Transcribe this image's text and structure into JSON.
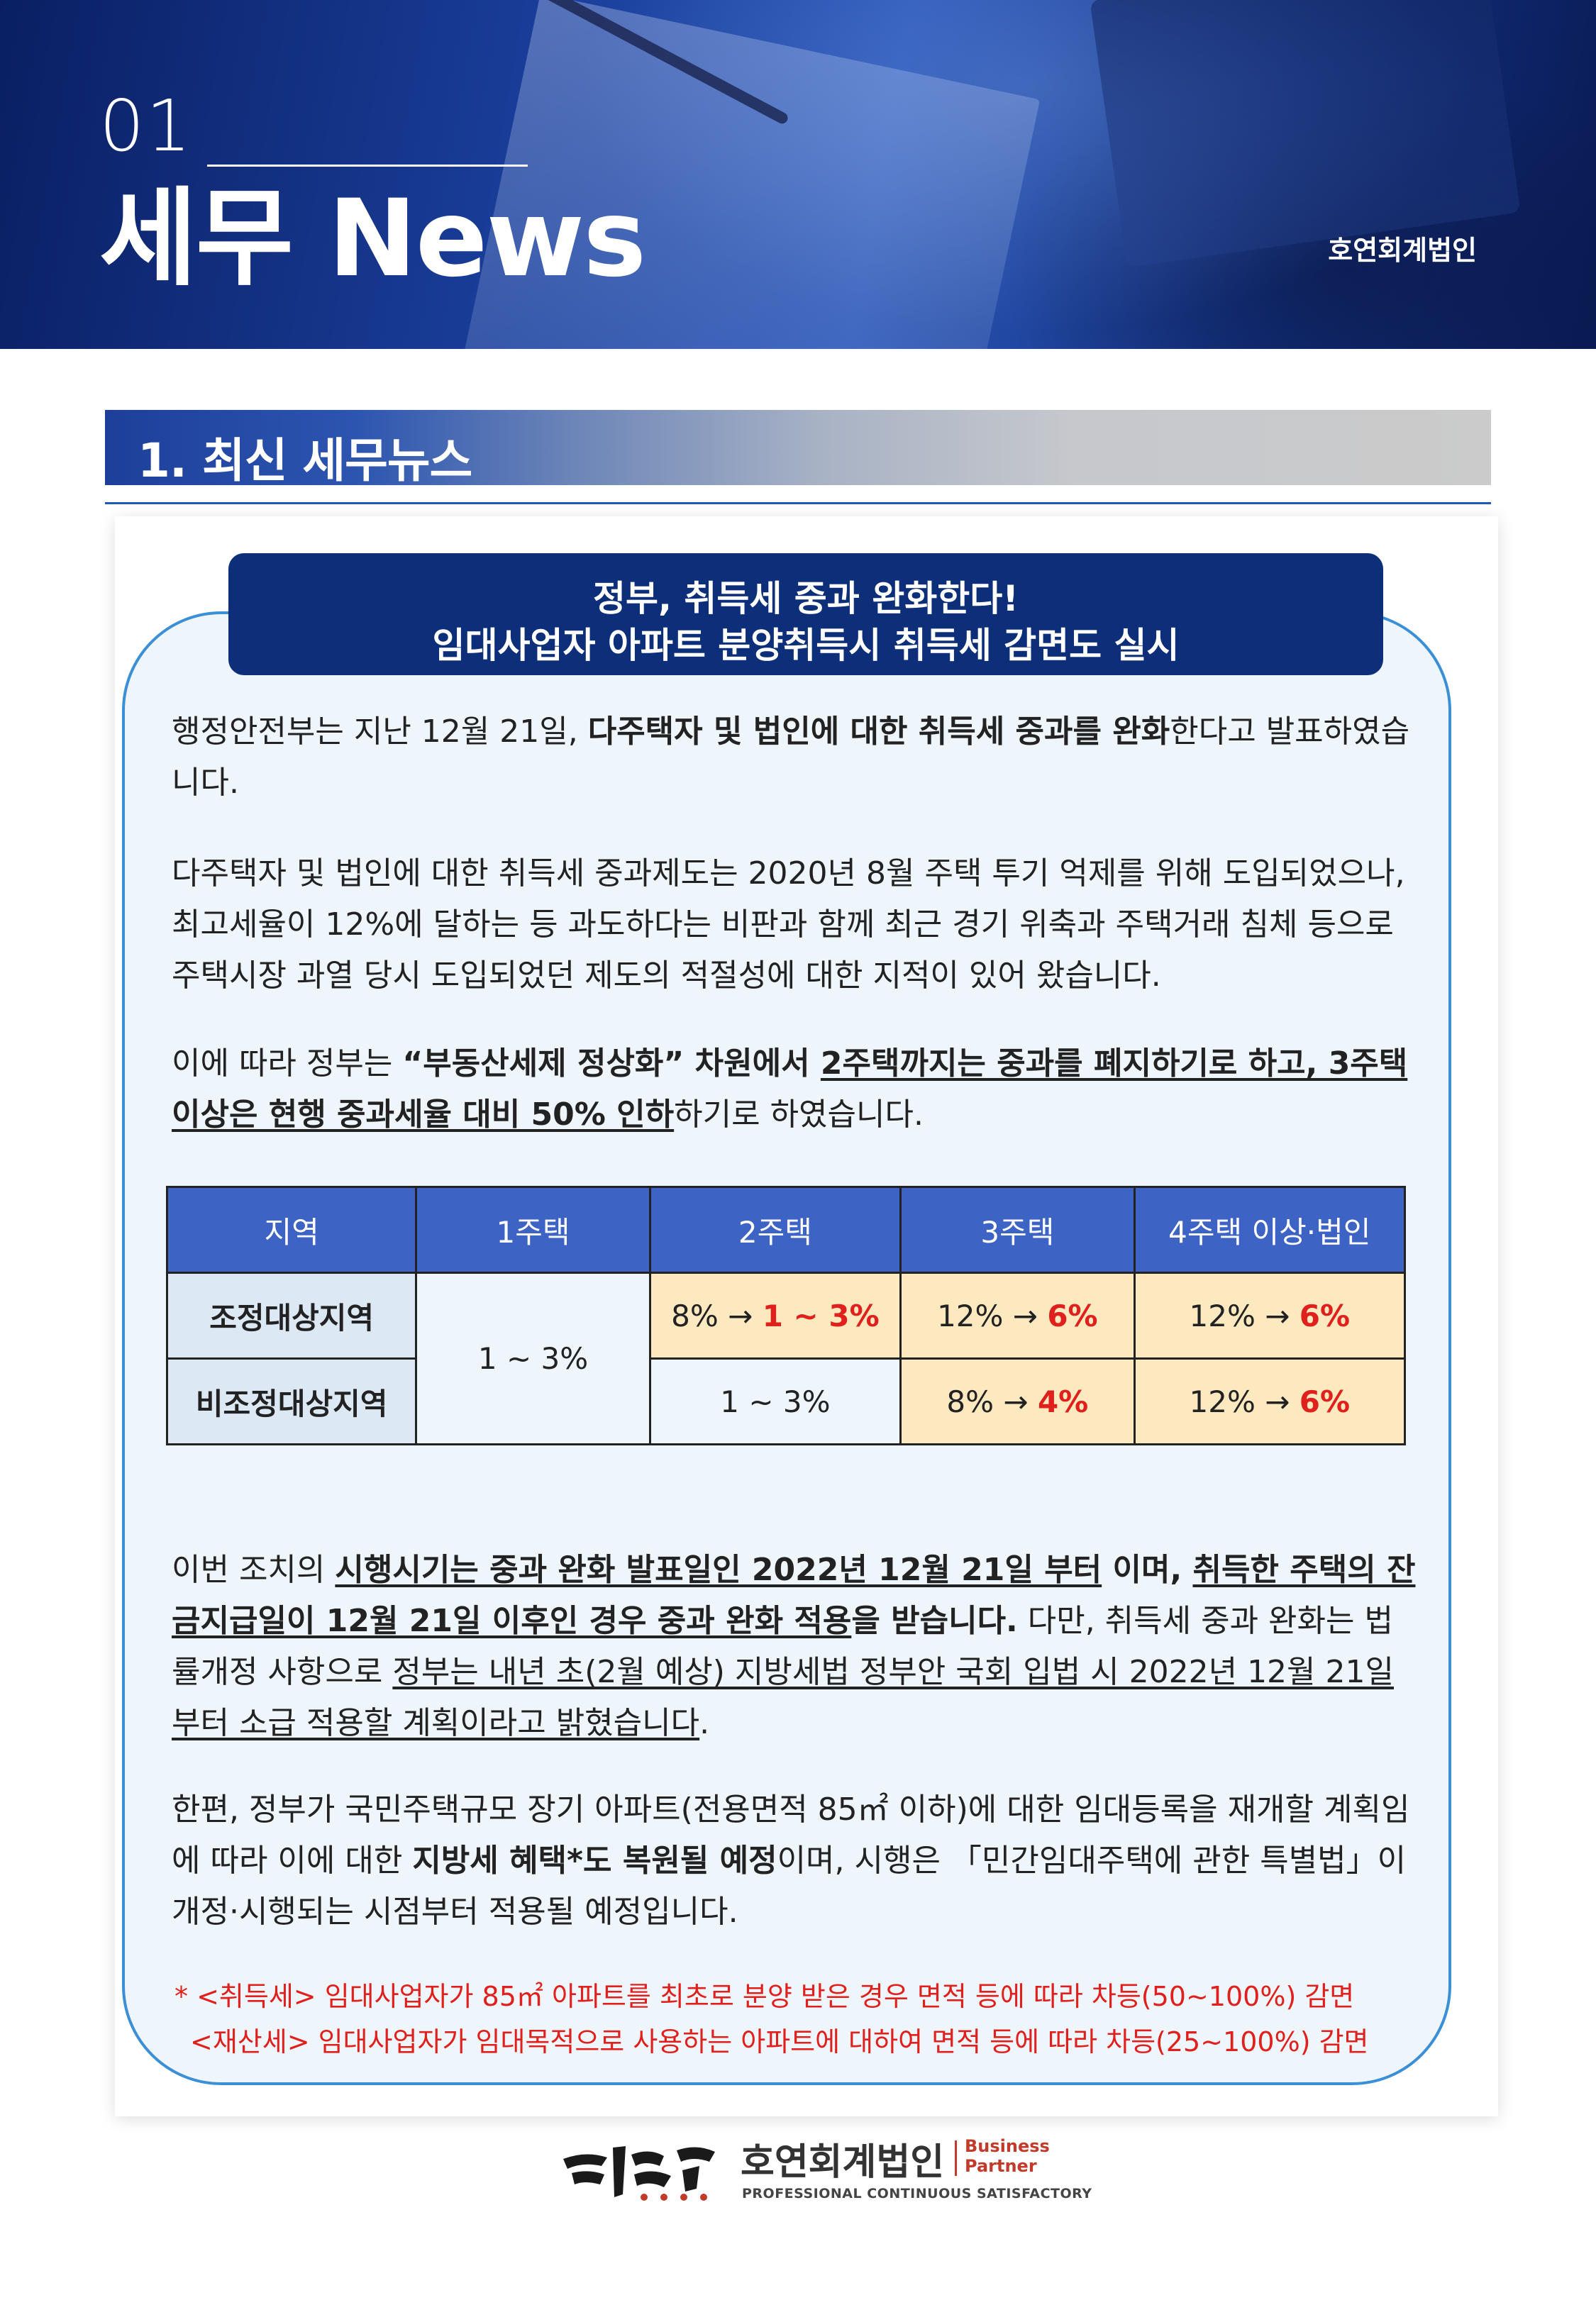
{
  "header": {
    "section_number": "01",
    "title": "세무 News",
    "firm": "호연회계법인"
  },
  "section": {
    "title": "1. 최신 세무뉴스"
  },
  "headline": {
    "line1": "정부, 취득세 중과 완화한다!",
    "line2": "임대사업자 아파트 분양취득시 취득세 감면도 실시"
  },
  "paragraphs": {
    "p1_a": "행정안전부는 지난 12월 21일, ",
    "p1_b": "다주택자 및 법인에 대한 취득세 중과를 완화",
    "p1_c": "한다고 발표하였습니다.",
    "p2": "다주택자 및 법인에 대한 취득세 중과제도는 2020년 8월 주택 투기 억제를 위해 도입되었으나, 최고세율이 12%에 달하는 등 과도하다는 비판과 함께 최근 경기 위축과 주택거래 침체 등으로 주택시장 과열 당시 도입되었던 제도의 적절성에 대한 지적이 있어 왔습니다.",
    "p3_a": "이에 따라 정부는 ",
    "p3_b": "“부동산세제 정상화” 차원에서 ",
    "p3_c": "2주택까지는 중과를 폐지하기로 하고, 3주택 이상은 현행 중과세율 대비 50% 인하",
    "p3_d": "하기로 하였습니다.",
    "p4_a": "이번 조치의 ",
    "p4_b": "시행시기는 중과 완화 발표일인 2022년 12월 21일 부터",
    "p4_c": " 이며, ",
    "p4_d": "취득한 주택의 잔금지급일이 12월 21일 이후인 경우 중과 완화 적용",
    "p4_e": "을 받습니다.",
    "p4_f": " 다만, 취득세 중과 완화는 법률개정 사항으로 ",
    "p4_g": "정부는 내년 초(2월 예상) 지방세법 정부안 국회 입법 시 2022년 12월 21일부터 소급 적용할 계획이라고 밝혔습니다",
    "p4_h": ".",
    "p5_a": "한편, 정부가 국민주택규모 장기 아파트(전용면적 85㎡ 이하)에 대한 임대등록을 재개할 계획임에 따라 이에 대한 ",
    "p5_b": "지방세 혜택*도 복원될 예정",
    "p5_c": "이며, 시행은 「민간임대주택에 관한 특별법」이 개정·시행되는 시점부터 적용될 예정입니다."
  },
  "table": {
    "headers": [
      "지역",
      "1주택",
      "2주택",
      "3주택",
      "4주택 이상·법인"
    ],
    "row1": {
      "region": "조정대상지역",
      "one_house": "1 ~ 3%",
      "two_from": "8% → ",
      "two_to": "1 ~ 3%",
      "three_from": "12% → ",
      "three_to": "6%",
      "four_from": "12% → ",
      "four_to": "6%"
    },
    "row2": {
      "region": "비조정대상지역",
      "two": "1 ~ 3%",
      "three_from": "8% → ",
      "three_to": "4%",
      "four_from": "12% → ",
      "four_to": "6%"
    }
  },
  "notes": {
    "n1": "* <취득세> 임대사업자가 85㎡ 아파트를 최초로 분양 받은 경우 면적 등에 따라 차등(50~100%) 감면",
    "n2": "<재산세> 임대사업자가 임대목적으로 사용하는 아파트에 대하여 면적 등에 따라 차등(25~100%) 감면"
  },
  "footer": {
    "name": "호연회계법인",
    "tag_line1": "Business",
    "tag_line2": "Partner",
    "slogan": "PROFESSIONAL CONTINUOUS SATISFACTORY"
  },
  "colors": {
    "navy": "#0d2f7a",
    "table_header": "#3d63c5",
    "highlight": "#fde9bf",
    "accent_red": "#e0201c"
  }
}
